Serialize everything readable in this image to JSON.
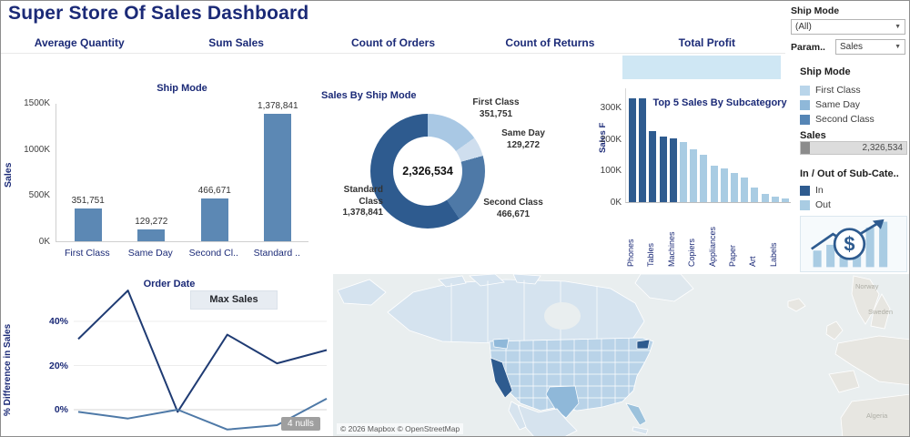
{
  "title": "Super Store Of Sales Dashboard",
  "controls": {
    "ship_mode_label": "Ship Mode",
    "ship_mode_value": "(All)",
    "param_label": "Param..",
    "param_value": "Sales"
  },
  "kpi_tabs": [
    {
      "label": "Average Quantity"
    },
    {
      "label": "Sum Sales"
    },
    {
      "label": "Count of Orders"
    },
    {
      "label": "Count of Returns"
    },
    {
      "label": "Total Profit"
    }
  ],
  "colors": {
    "bar": "#5c88b4",
    "in": "#2e5b8f",
    "out": "#a9cce3",
    "highlight": "#cfe7f4"
  },
  "chart_data": [
    {
      "id": "ship_mode_bar",
      "type": "bar",
      "title": "Ship Mode",
      "ylabel": "Sales",
      "yticks": [
        "1500K",
        "1000K",
        "500K",
        "0K"
      ],
      "ylim": [
        0,
        1500000
      ],
      "categories": [
        "First Class",
        "Same Day",
        "Second Cl..",
        "Standard .."
      ],
      "values": [
        351751,
        129272,
        466671,
        1378841
      ],
      "value_labels": [
        "351,751",
        "129,272",
        "466,671",
        "1,378,841"
      ]
    },
    {
      "id": "sales_by_ship_mode",
      "type": "pie",
      "title": "Sales By Ship Mode",
      "center_label": "2,326,534",
      "slices": [
        {
          "label": "First Class",
          "value": 351751,
          "value_label": "351,751",
          "color": "#a9c8e4"
        },
        {
          "label": "Same Day",
          "value": 129272,
          "value_label": "129,272",
          "color": "#cfdeee"
        },
        {
          "label": "Second Class",
          "value": 466671,
          "value_label": "466,671",
          "color": "#4e79a7"
        },
        {
          "label": "Standard Class",
          "value": 1378841,
          "value_label": "1,378,841",
          "color": "#2e5b8f"
        }
      ]
    },
    {
      "id": "top5_subcategory",
      "type": "bar",
      "title": "Top 5 Sales By Subcategory",
      "ylabel": "Sales F",
      "yticks": [
        "300K",
        "200K",
        "100K",
        "0K"
      ],
      "ylim": [
        0,
        340000
      ],
      "bars": [
        {
          "label": "Phones",
          "value": 330007,
          "in": true
        },
        {
          "label": "",
          "value": 328449,
          "in": true
        },
        {
          "label": "Tables",
          "value": 223844,
          "in": true
        },
        {
          "label": "",
          "value": 206966,
          "in": true
        },
        {
          "label": "Machines",
          "value": 203413,
          "in": true
        },
        {
          "label": "",
          "value": 189239,
          "in": false
        },
        {
          "label": "Copiers",
          "value": 167380,
          "in": false
        },
        {
          "label": "",
          "value": 149528,
          "in": false
        },
        {
          "label": "Appliances",
          "value": 114880,
          "in": false
        },
        {
          "label": "",
          "value": 107532,
          "in": false
        },
        {
          "label": "Paper",
          "value": 91705,
          "in": false
        },
        {
          "label": "",
          "value": 78479,
          "in": false
        },
        {
          "label": "Art",
          "value": 46674,
          "in": false
        },
        {
          "label": "",
          "value": 27119,
          "in": false
        },
        {
          "label": "Labels",
          "value": 16476,
          "in": false
        },
        {
          "label": "",
          "value": 12486,
          "in": false
        }
      ]
    },
    {
      "id": "order_date_line",
      "type": "line",
      "title": "Order Date",
      "header": "Max Sales",
      "ylabel": "% Difference in Sales",
      "yticks": [
        "40%",
        "20%",
        "0%"
      ],
      "nulls_note": "4 nulls",
      "series": [
        {
          "name": "series-dark",
          "color": "#1f3b73",
          "values_pct": [
            32,
            54,
            -1,
            34,
            21,
            27
          ]
        },
        {
          "name": "series-light",
          "color": "#4e79a7",
          "values_pct": [
            -1,
            -4,
            0,
            -9,
            -7,
            5
          ]
        }
      ]
    },
    {
      "id": "sales_map",
      "type": "map",
      "attribution": "© 2026 Mapbox © OpenStreetMap",
      "region_labels": [
        "Norway",
        "Sweden",
        "Algeria"
      ]
    }
  ],
  "legends": {
    "ship_mode": {
      "title": "Ship Mode",
      "items": [
        {
          "label": "First Class",
          "color": "#b9d5ea"
        },
        {
          "label": "Same Day",
          "color": "#8fb8d9"
        },
        {
          "label": "Second Class",
          "color": "#5585b5"
        }
      ]
    },
    "sales": {
      "title": "Sales",
      "value": "2,326,534"
    },
    "in_out": {
      "title": "In / Out of Sub-Cate..",
      "items": [
        {
          "label": "In",
          "color": "#2e5b8f"
        },
        {
          "label": "Out",
          "color": "#a9cce3"
        }
      ]
    }
  }
}
